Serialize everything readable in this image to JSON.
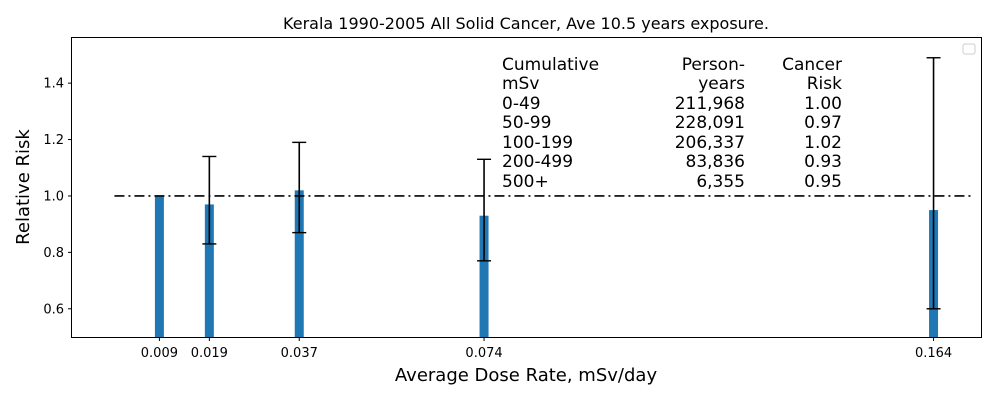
{
  "chart_data": {
    "type": "bar",
    "title": "Kerala 1990-2005 All Solid Cancer, Ave 10.5 years exposure.",
    "xlabel": "Average Dose Rate, mSv/day",
    "ylabel": "Relative Risk",
    "x_ticks": [
      "0.009",
      "0.019",
      "0.037",
      "0.074",
      "0.164"
    ],
    "x": [
      0.009,
      0.019,
      0.037,
      0.074,
      0.164
    ],
    "values": [
      1.0,
      0.97,
      1.02,
      0.93,
      0.95
    ],
    "error_low": [
      null,
      0.83,
      0.87,
      0.77,
      0.6
    ],
    "error_high": [
      null,
      1.14,
      1.19,
      1.13,
      1.49
    ],
    "xlim": [
      -0.0085,
      0.1735
    ],
    "ylim": [
      0.5,
      1.56
    ],
    "y_ticks": [
      0.6,
      0.8,
      1.0,
      1.2,
      1.4
    ],
    "reference_line": {
      "y": 1.0,
      "style": "dash-dot",
      "x_range": [
        0.0,
        0.172
      ]
    },
    "bar_color": "#1f77b4",
    "legend": "top-right (empty)",
    "grid": false,
    "table": {
      "headers": [
        [
          "Cumulative",
          "mSv"
        ],
        [
          "Person-",
          "years"
        ],
        [
          "Cancer",
          "Risk"
        ]
      ],
      "rows": [
        [
          "0-49",
          "211,968",
          "1.00"
        ],
        [
          "50-99",
          "228,091",
          "0.97"
        ],
        [
          "100-199",
          "206,337",
          "1.02"
        ],
        [
          "200-499",
          "83,836",
          "0.93"
        ],
        [
          "500+",
          "6,355",
          "0.95"
        ]
      ]
    }
  }
}
